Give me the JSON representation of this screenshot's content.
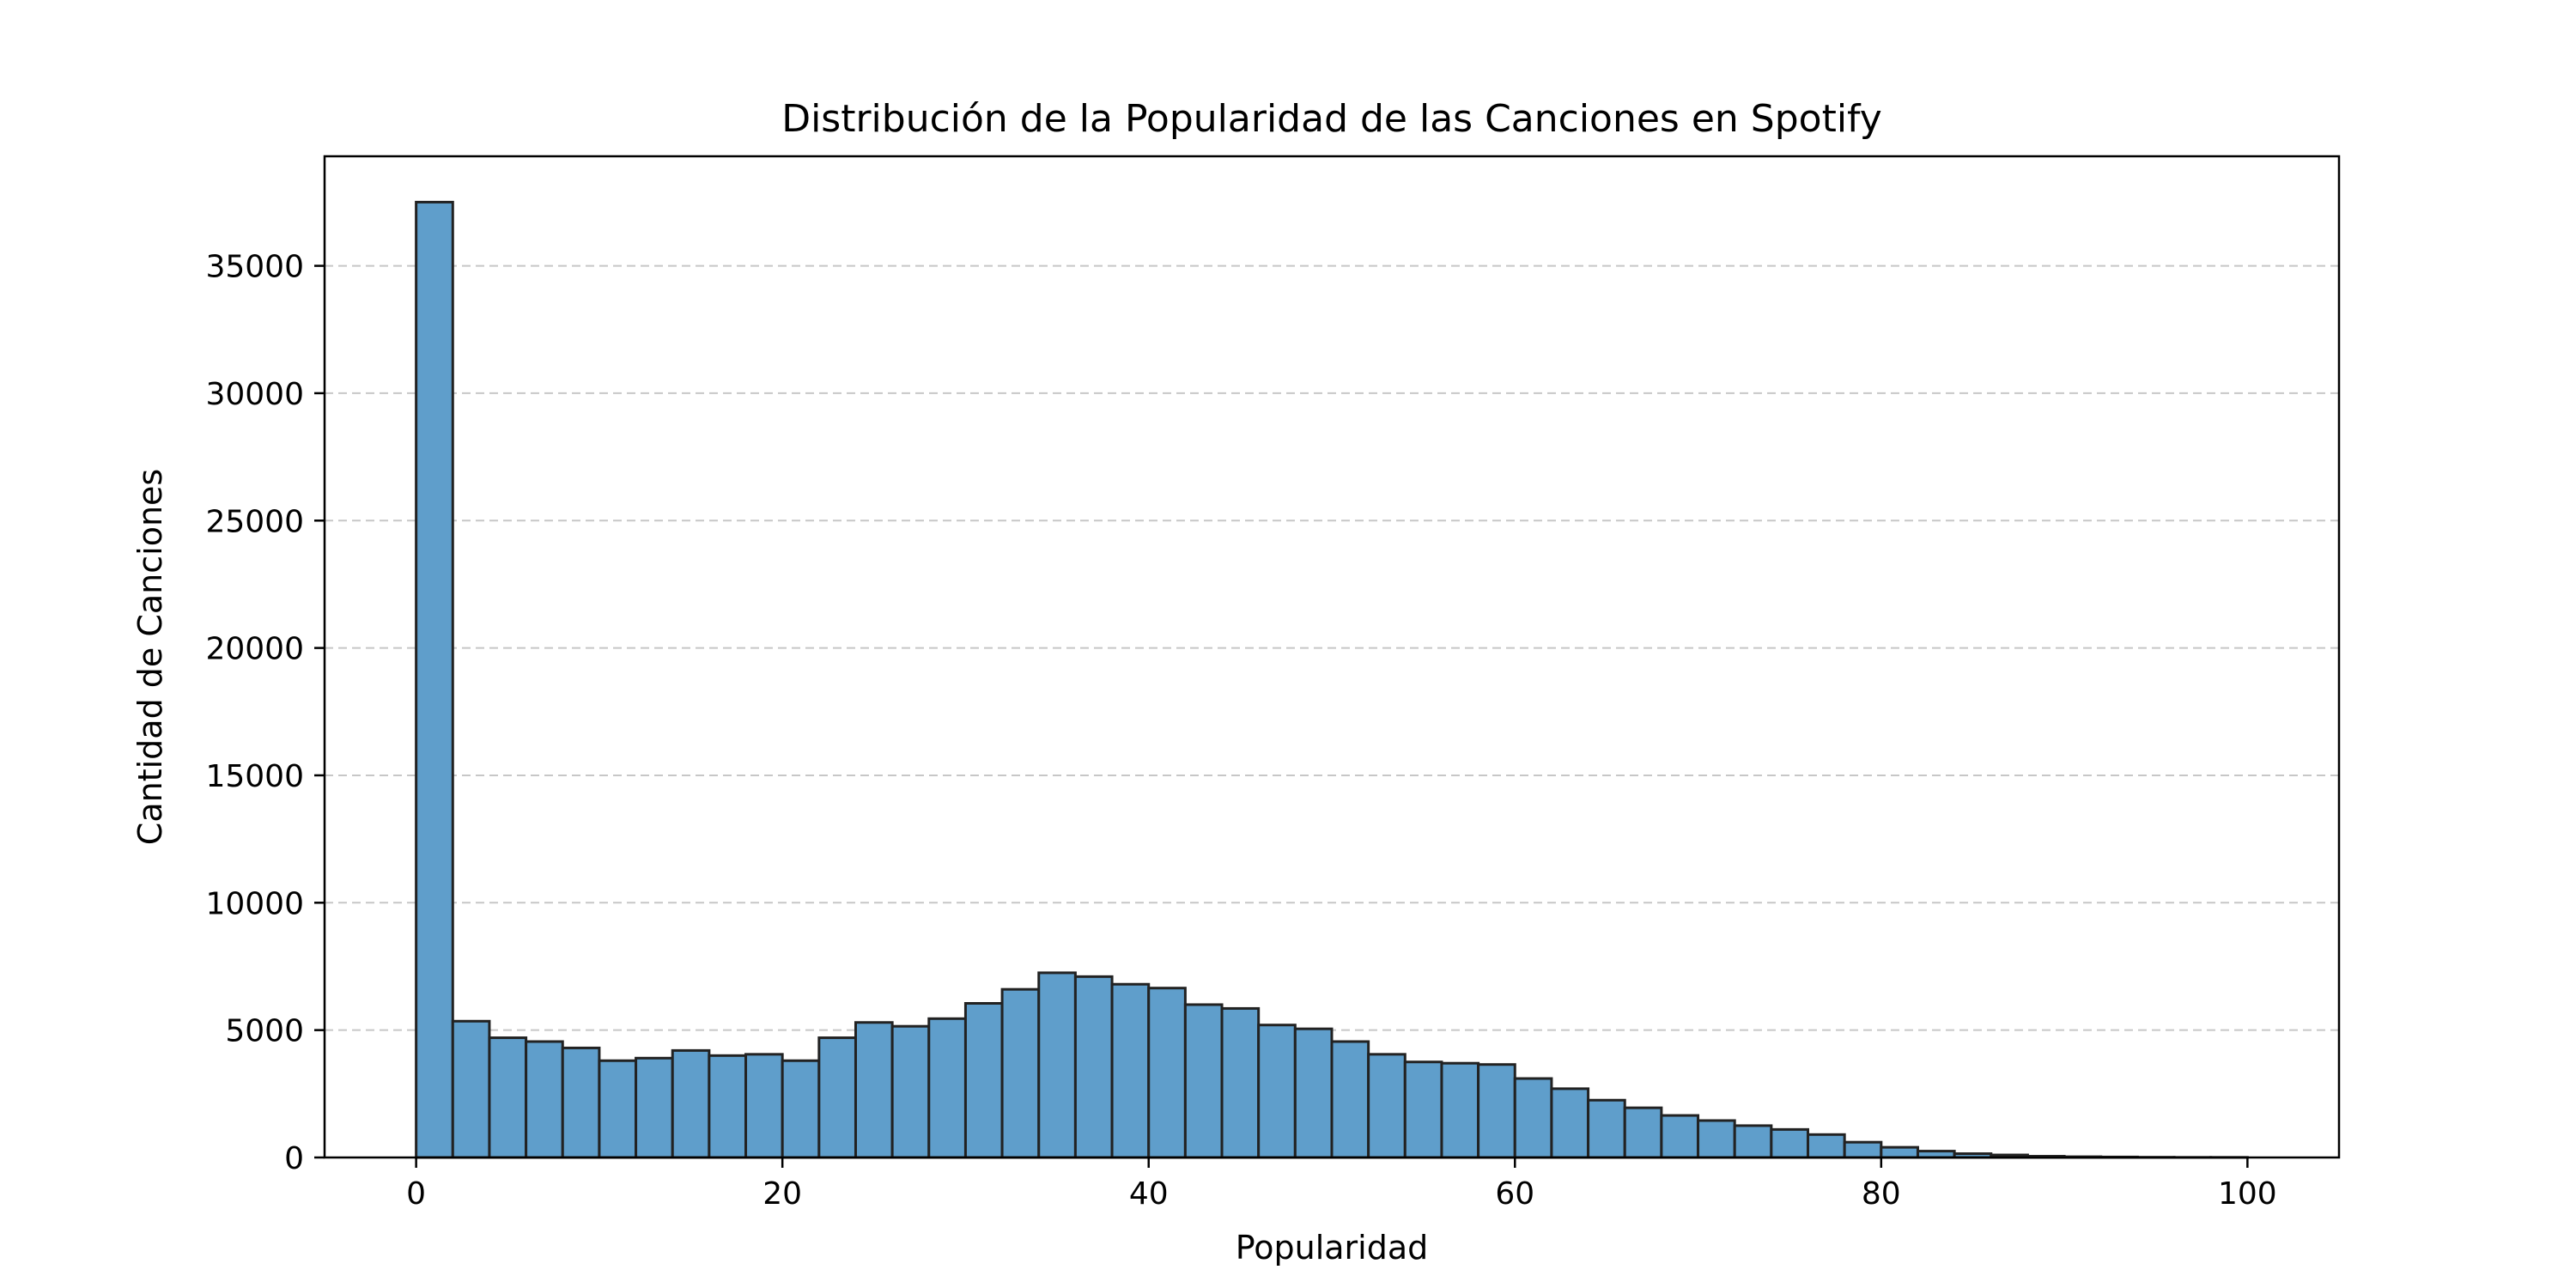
{
  "chart_data": {
    "type": "bar",
    "title": "Distribución de la Popularidad de las Canciones en Spotify",
    "xlabel": "Popularidad",
    "ylabel": "Cantidad de Canciones",
    "xlim": [
      -5,
      105
    ],
    "ylim": [
      0,
      39300
    ],
    "grid": "y-dashed",
    "bar_color": "#5f9ecb",
    "bin_width": 2,
    "xticks": [
      0,
      20,
      40,
      60,
      80,
      100
    ],
    "yticks": [
      0,
      5000,
      10000,
      15000,
      20000,
      25000,
      30000,
      35000
    ],
    "bins_start": [
      0,
      2,
      4,
      6,
      8,
      10,
      12,
      14,
      16,
      18,
      20,
      22,
      24,
      26,
      28,
      30,
      32,
      34,
      36,
      38,
      40,
      42,
      44,
      46,
      48,
      50,
      52,
      54,
      56,
      58,
      60,
      62,
      64,
      66,
      68,
      70,
      72,
      74,
      76,
      78,
      80,
      82,
      84,
      86,
      88,
      90,
      92,
      94,
      96,
      98
    ],
    "values": [
      37500,
      5350,
      4700,
      4550,
      4300,
      3800,
      3900,
      4200,
      4000,
      4050,
      3800,
      4700,
      5300,
      5150,
      5450,
      6050,
      6600,
      7250,
      7100,
      6800,
      6650,
      6000,
      5850,
      5200,
      5050,
      4550,
      4050,
      3750,
      3700,
      3650,
      3100,
      2700,
      2250,
      1950,
      1650,
      1450,
      1250,
      1100,
      900,
      600,
      400,
      250,
      150,
      100,
      50,
      30,
      20,
      10,
      5,
      5
    ]
  }
}
